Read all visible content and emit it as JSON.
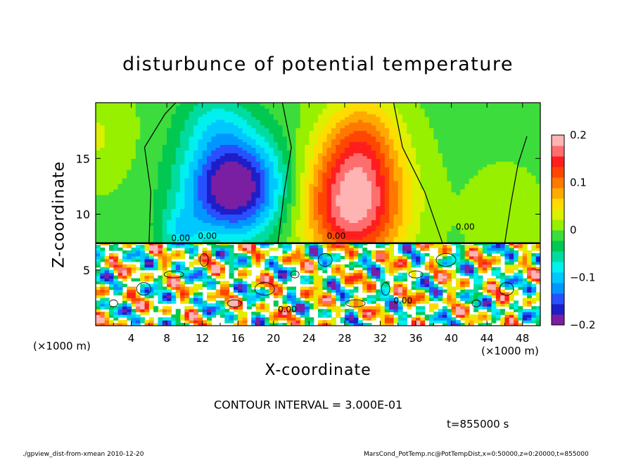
{
  "chart_data": {
    "type": "heatmap",
    "title": "disturbunce of potential temperature",
    "xlabel": "X-coordinate",
    "ylabel": "Z-coordinate",
    "x_unit_label": "(×1000 m)",
    "x_ticks": [
      "4",
      "8",
      "12",
      "16",
      "20",
      "24",
      "28",
      "32",
      "36",
      "40",
      "44",
      "48"
    ],
    "x_tick_values": [
      4,
      8,
      12,
      16,
      20,
      24,
      28,
      32,
      36,
      40,
      44,
      48
    ],
    "y_ticks": [
      "5",
      "10",
      "15"
    ],
    "y_tick_values": [
      5,
      10,
      15
    ],
    "xlim": [
      0,
      50
    ],
    "ylim": [
      0,
      20
    ],
    "colorbar": {
      "labels": [
        "0.2",
        "0.1",
        "0",
        "−0.1",
        "−0.2"
      ],
      "values": [
        0.2,
        0.1,
        0,
        -0.1,
        -0.2
      ],
      "range": [
        -0.2,
        0.2
      ],
      "colors": [
        "#7a1fa2",
        "#1e1ec8",
        "#2850ff",
        "#0096ff",
        "#00c8ff",
        "#00f0f0",
        "#00dca0",
        "#00c850",
        "#3cdc3c",
        "#96f000",
        "#dcf000",
        "#ffdc00",
        "#ffaa00",
        "#ff7800",
        "#ff4600",
        "#ff1e1e",
        "#ff6e6e",
        "#ffb4b4"
      ]
    },
    "contour_labels": [
      "0.00",
      "0.00",
      "0.00",
      "0.00",
      "0.00",
      "0.00"
    ],
    "contour_interval_text": "CONTOUR INTERVAL = 3.000E-01",
    "time_text": "t=855000 s"
  },
  "footer": {
    "left": "./gpview_dist-from-xmean  2010-12-20",
    "right": "MarsCond_PotTemp.nc@PotTempDist,x=0:50000,z=0:20000,t=855000"
  }
}
